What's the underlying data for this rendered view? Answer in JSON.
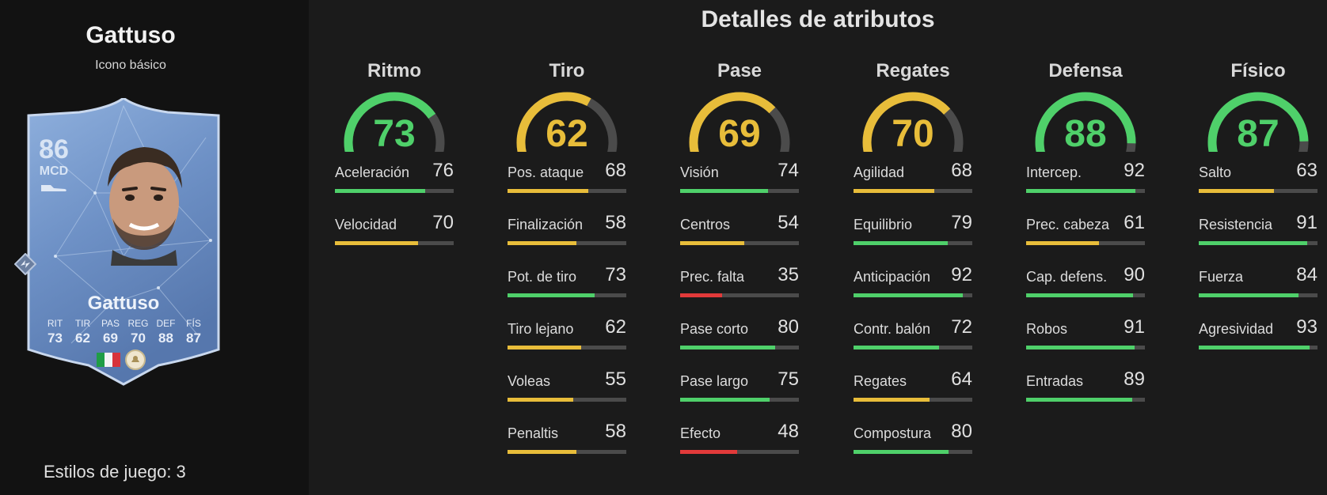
{
  "player": {
    "name": "Gattuso",
    "card_type": "Icono básico",
    "overall": "86",
    "position": "MCD",
    "playstyles_label": "Estilos de juego: 3",
    "card_stats": {
      "labels": [
        "RIT",
        "TIR",
        "PAS",
        "REG",
        "DEF",
        "FÍS"
      ],
      "values": [
        "73",
        "62",
        "69",
        "70",
        "88",
        "87"
      ]
    }
  },
  "colors": {
    "green": "#4fd06a",
    "yellow": "#e8bd3a",
    "red": "#e23a3a",
    "track": "#4b4b4b"
  },
  "section_title": "Detalles de atributos",
  "categories": [
    {
      "name": "Ritmo",
      "value": 73,
      "color": "green",
      "attributes": [
        {
          "label": "Aceleración",
          "value": 76,
          "color": "green"
        },
        {
          "label": "Velocidad",
          "value": 70,
          "color": "yellow"
        }
      ]
    },
    {
      "name": "Tiro",
      "value": 62,
      "color": "yellow",
      "attributes": [
        {
          "label": "Pos. ataque",
          "value": 68,
          "color": "yellow"
        },
        {
          "label": "Finalización",
          "value": 58,
          "color": "yellow"
        },
        {
          "label": "Pot. de tiro",
          "value": 73,
          "color": "green"
        },
        {
          "label": "Tiro lejano",
          "value": 62,
          "color": "yellow"
        },
        {
          "label": "Voleas",
          "value": 55,
          "color": "yellow"
        },
        {
          "label": "Penaltis",
          "value": 58,
          "color": "yellow"
        }
      ]
    },
    {
      "name": "Pase",
      "value": 69,
      "color": "yellow",
      "attributes": [
        {
          "label": "Visión",
          "value": 74,
          "color": "green"
        },
        {
          "label": "Centros",
          "value": 54,
          "color": "yellow"
        },
        {
          "label": "Prec. falta",
          "value": 35,
          "color": "red"
        },
        {
          "label": "Pase corto",
          "value": 80,
          "color": "green"
        },
        {
          "label": "Pase largo",
          "value": 75,
          "color": "green"
        },
        {
          "label": "Efecto",
          "value": 48,
          "color": "red"
        }
      ]
    },
    {
      "name": "Regates",
      "value": 70,
      "color": "yellow",
      "attributes": [
        {
          "label": "Agilidad",
          "value": 68,
          "color": "yellow"
        },
        {
          "label": "Equilibrio",
          "value": 79,
          "color": "green"
        },
        {
          "label": "Anticipación",
          "value": 92,
          "color": "green"
        },
        {
          "label": "Contr. balón",
          "value": 72,
          "color": "green"
        },
        {
          "label": "Regates",
          "value": 64,
          "color": "yellow"
        },
        {
          "label": "Compostura",
          "value": 80,
          "color": "green"
        }
      ]
    },
    {
      "name": "Defensa",
      "value": 88,
      "color": "green",
      "attributes": [
        {
          "label": "Intercep.",
          "value": 92,
          "color": "green"
        },
        {
          "label": "Prec. cabeza",
          "value": 61,
          "color": "yellow"
        },
        {
          "label": "Cap. defens.",
          "value": 90,
          "color": "green"
        },
        {
          "label": "Robos",
          "value": 91,
          "color": "green"
        },
        {
          "label": "Entradas",
          "value": 89,
          "color": "green"
        }
      ]
    },
    {
      "name": "Físico",
      "value": 87,
      "color": "green",
      "attributes": [
        {
          "label": "Salto",
          "value": 63,
          "color": "yellow"
        },
        {
          "label": "Resistencia",
          "value": 91,
          "color": "green"
        },
        {
          "label": "Fuerza",
          "value": 84,
          "color": "green"
        },
        {
          "label": "Agresividad",
          "value": 93,
          "color": "green"
        }
      ]
    }
  ]
}
